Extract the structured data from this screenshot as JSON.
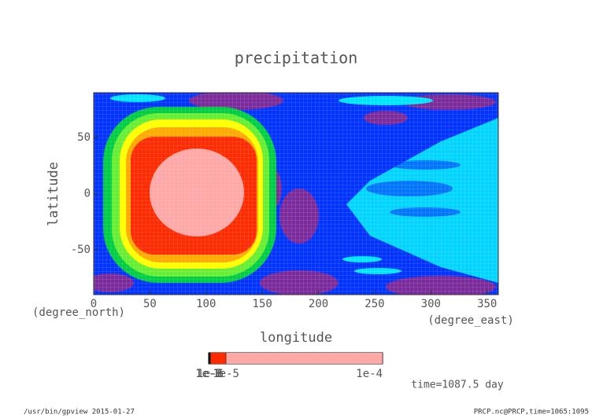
{
  "chart_data": {
    "type": "contour",
    "title": "precipitation",
    "xlabel": "longitude",
    "ylabel": "latitude",
    "xunits": "(degree_east)",
    "yunits": "(degree_north)",
    "xlim": [
      0,
      360
    ],
    "ylim": [
      -90,
      90
    ],
    "xticks": [
      0,
      50,
      100,
      150,
      200,
      250,
      300,
      350
    ],
    "yticks": [
      -50,
      0,
      50
    ],
    "colorbar": {
      "levels": [
        {
          "value": 1e-08,
          "label": "1e-8"
        },
        {
          "value": 1e-07,
          "label": "1e-7"
        },
        {
          "value": 1e-06,
          "label": "1e-6"
        },
        {
          "value": 1e-05,
          "label": "1e-5"
        },
        {
          "value": 0.0001,
          "label": "1e-4"
        }
      ],
      "colors": [
        "#006400",
        "#000000",
        "#ff2a00",
        "#ffa8a8"
      ],
      "lim": [
        0,
        0.0001
      ]
    },
    "annotation": "time=1087.5 day",
    "footer_left": "/usr/bin/gpview  2015-01-27",
    "footer_right": "PRCP.nc@PRCP,time=1065:1095"
  }
}
